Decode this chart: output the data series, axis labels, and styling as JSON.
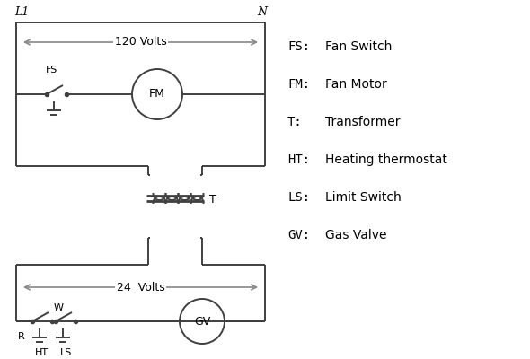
{
  "background_color": "#ffffff",
  "line_color": "#404040",
  "arrow_color": "#888888",
  "text_color": "#000000",
  "legend_items": [
    [
      "FS:",
      "Fan Switch"
    ],
    [
      "FM:",
      "Fan Motor"
    ],
    [
      "T:",
      "Transformer"
    ],
    [
      "HT:",
      "Heating thermostat"
    ],
    [
      "LS:",
      "Limit Switch"
    ],
    [
      "GV:",
      "Gas Valve"
    ]
  ],
  "volts_120": "120 Volts",
  "volts_24": "24  Volts",
  "L1_label": "L1",
  "N_label": "N",
  "R_label": "R",
  "W_label": "W",
  "FS_label": "FS",
  "FM_label": "FM",
  "T_label": "T",
  "HT_label": "HT",
  "LS_label": "LS",
  "GV_label": "GV",
  "figsize": [
    5.9,
    4.0
  ],
  "dpi": 100
}
